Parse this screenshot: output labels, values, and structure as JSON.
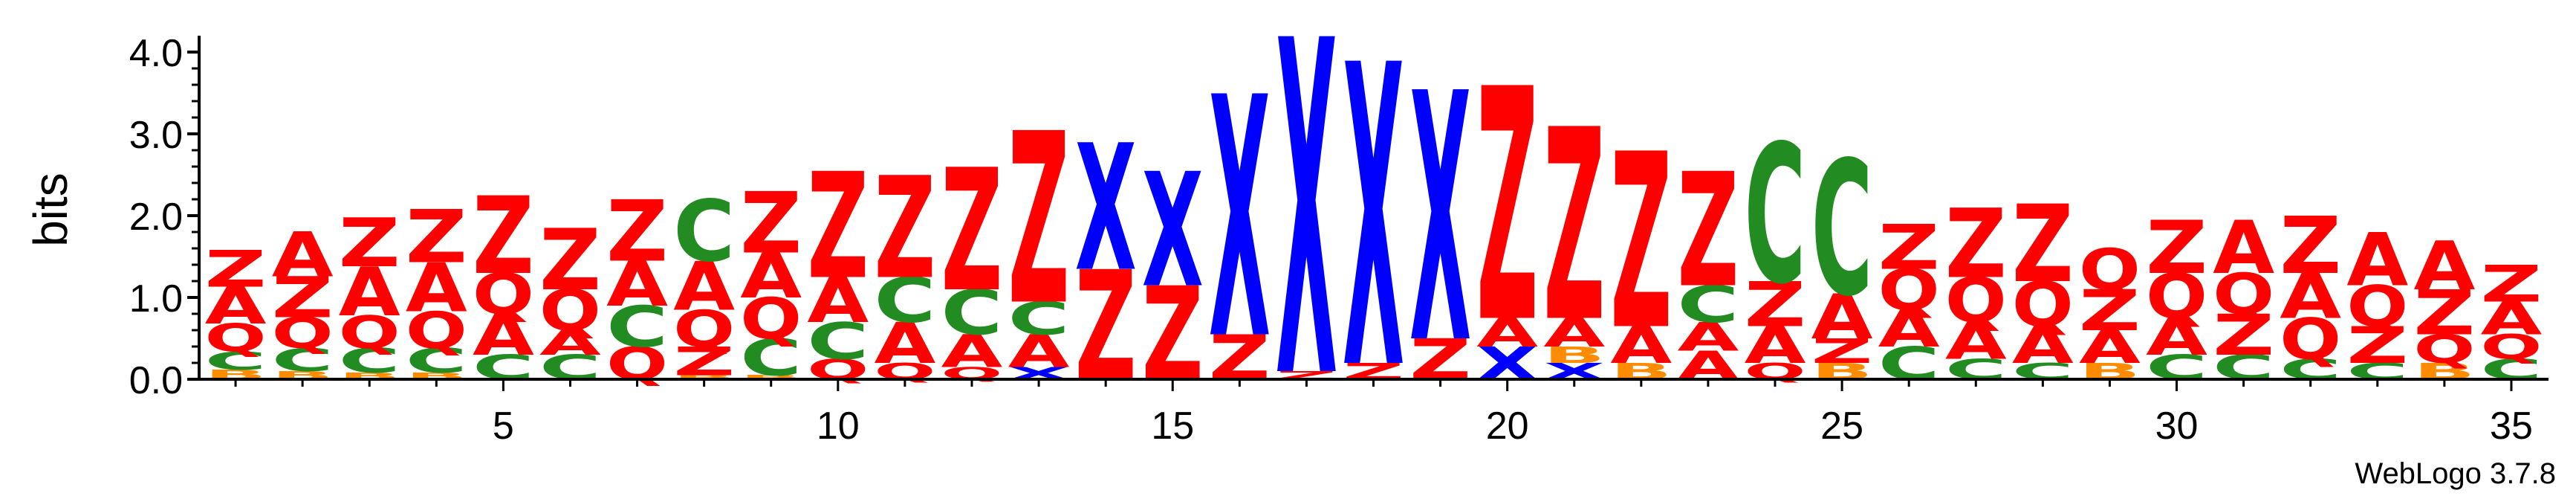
{
  "chart_data": {
    "type": "sequence_logo",
    "ylabel": "bits",
    "ylim": [
      0,
      4.2
    ],
    "yticks": [
      "0.0",
      "1.0",
      "2.0",
      "3.0",
      "4.0"
    ],
    "xticks": [
      5,
      10,
      15,
      20,
      25,
      30,
      35
    ],
    "positions": [
      1,
      35
    ],
    "footer": "WebLogo 3.7.8",
    "letter_colors": {
      "A": "#ff0000",
      "Z": "#ff0000",
      "Q": "#ff0000",
      "X": "#0000ff",
      "C": "#228b22",
      "B": "#ff8c00",
      "P": "#ff8c00"
    },
    "columns": [
      {
        "position": 1,
        "stack": [
          [
            "B",
            0.12
          ],
          [
            "C",
            0.22
          ],
          [
            "Q",
            0.34
          ],
          [
            "A",
            0.45
          ],
          [
            "Z",
            0.45
          ]
        ]
      },
      {
        "position": 2,
        "stack": [
          [
            "B",
            0.1
          ],
          [
            "C",
            0.28
          ],
          [
            "Q",
            0.38
          ],
          [
            "Z",
            0.5
          ],
          [
            "A",
            0.55
          ]
        ]
      },
      {
        "position": 3,
        "stack": [
          [
            "B",
            0.08
          ],
          [
            "C",
            0.3
          ],
          [
            "Q",
            0.4
          ],
          [
            "A",
            0.6
          ],
          [
            "Z",
            0.6
          ]
        ]
      },
      {
        "position": 4,
        "stack": [
          [
            "B",
            0.08
          ],
          [
            "C",
            0.3
          ],
          [
            "Q",
            0.45
          ],
          [
            "A",
            0.6
          ],
          [
            "Z",
            0.65
          ]
        ]
      },
      {
        "position": 5,
        "stack": [
          [
            "C",
            0.3
          ],
          [
            "A",
            0.5
          ],
          [
            "Q",
            0.5
          ],
          [
            "Z",
            0.95
          ]
        ]
      },
      {
        "position": 6,
        "stack": [
          [
            "C",
            0.3
          ],
          [
            "A",
            0.3
          ],
          [
            "Q",
            0.5
          ],
          [
            "Z",
            0.75
          ]
        ]
      },
      {
        "position": 7,
        "stack": [
          [
            "Q",
            0.4
          ],
          [
            "C",
            0.5
          ],
          [
            "A",
            0.55
          ],
          [
            "Z",
            0.75
          ]
        ]
      },
      {
        "position": 8,
        "stack": [
          [
            "B",
            0.05
          ],
          [
            "Z",
            0.35
          ],
          [
            "Q",
            0.45
          ],
          [
            "A",
            0.6
          ],
          [
            "C",
            0.75
          ]
        ]
      },
      {
        "position": 9,
        "stack": [
          [
            "B",
            0.05
          ],
          [
            "C",
            0.45
          ],
          [
            "Q",
            0.5
          ],
          [
            "A",
            0.55
          ],
          [
            "Z",
            0.75
          ]
        ]
      },
      {
        "position": 10,
        "stack": [
          [
            "Q",
            0.25
          ],
          [
            "C",
            0.45
          ],
          [
            "A",
            0.55
          ],
          [
            "Z",
            1.3
          ]
        ]
      },
      {
        "position": 11,
        "stack": [
          [
            "Q",
            0.2
          ],
          [
            "A",
            0.5
          ],
          [
            "C",
            0.55
          ],
          [
            "Z",
            1.25
          ]
        ]
      },
      {
        "position": 12,
        "stack": [
          [
            "Q",
            0.15
          ],
          [
            "A",
            0.4
          ],
          [
            "C",
            0.55
          ],
          [
            "Z",
            1.5
          ]
        ]
      },
      {
        "position": 13,
        "stack": [
          [
            "X",
            0.15
          ],
          [
            "A",
            0.4
          ],
          [
            "C",
            0.4
          ],
          [
            "Z",
            2.1
          ]
        ]
      },
      {
        "position": 14,
        "stack": [
          [
            "Z",
            1.35
          ],
          [
            "X",
            1.55
          ]
        ]
      },
      {
        "position": 15,
        "stack": [
          [
            "Z",
            1.15
          ],
          [
            "X",
            1.4
          ]
        ]
      },
      {
        "position": 16,
        "stack": [
          [
            "Z",
            0.55
          ],
          [
            "X",
            2.95
          ]
        ]
      },
      {
        "position": 17,
        "stack": [
          [
            "Z",
            0.1
          ],
          [
            "X",
            4.1
          ]
        ]
      },
      {
        "position": 18,
        "stack": [
          [
            "Z",
            0.2
          ],
          [
            "X",
            3.7
          ]
        ]
      },
      {
        "position": 19,
        "stack": [
          [
            "Z",
            0.5
          ],
          [
            "X",
            3.05
          ]
        ]
      },
      {
        "position": 20,
        "stack": [
          [
            "X",
            0.4
          ],
          [
            "A",
            0.35
          ],
          [
            "Z",
            2.85
          ]
        ]
      },
      {
        "position": 21,
        "stack": [
          [
            "X",
            0.2
          ],
          [
            "B",
            0.2
          ],
          [
            "A",
            0.35
          ],
          [
            "Z",
            2.35
          ]
        ]
      },
      {
        "position": 22,
        "stack": [
          [
            "B",
            0.2
          ],
          [
            "A",
            0.45
          ],
          [
            "Z",
            2.15
          ]
        ]
      },
      {
        "position": 23,
        "stack": [
          [
            "A",
            0.35
          ],
          [
            "A",
            0.35
          ],
          [
            "C",
            0.45
          ],
          [
            "Z",
            1.4
          ]
        ]
      },
      {
        "position": 24,
        "stack": [
          [
            "Q",
            0.2
          ],
          [
            "A",
            0.45
          ],
          [
            "Z",
            0.55
          ],
          [
            "C",
            1.7
          ]
        ]
      },
      {
        "position": 25,
        "stack": [
          [
            "B",
            0.2
          ],
          [
            "Z",
            0.3
          ],
          [
            "A",
            0.55
          ],
          [
            "C",
            1.65
          ]
        ]
      },
      {
        "position": 26,
        "stack": [
          [
            "C",
            0.4
          ],
          [
            "A",
            0.45
          ],
          [
            "Q",
            0.5
          ],
          [
            "Z",
            0.55
          ]
        ]
      },
      {
        "position": 27,
        "stack": [
          [
            "C",
            0.25
          ],
          [
            "A",
            0.45
          ],
          [
            "Q",
            0.55
          ],
          [
            "Z",
            0.85
          ]
        ]
      },
      {
        "position": 28,
        "stack": [
          [
            "C",
            0.2
          ],
          [
            "A",
            0.45
          ],
          [
            "Q",
            0.55
          ],
          [
            "Z",
            0.95
          ]
        ]
      },
      {
        "position": 29,
        "stack": [
          [
            "B",
            0.2
          ],
          [
            "A",
            0.4
          ],
          [
            "Z",
            0.5
          ],
          [
            "Q",
            0.5
          ]
        ]
      },
      {
        "position": 30,
        "stack": [
          [
            "C",
            0.3
          ],
          [
            "A",
            0.45
          ],
          [
            "Q",
            0.55
          ],
          [
            "Z",
            0.65
          ]
        ]
      },
      {
        "position": 31,
        "stack": [
          [
            "C",
            0.3
          ],
          [
            "Z",
            0.5
          ],
          [
            "Q",
            0.5
          ],
          [
            "A",
            0.65
          ]
        ]
      },
      {
        "position": 32,
        "stack": [
          [
            "C",
            0.25
          ],
          [
            "Q",
            0.5
          ],
          [
            "A",
            0.55
          ],
          [
            "Z",
            0.7
          ]
        ]
      },
      {
        "position": 33,
        "stack": [
          [
            "C",
            0.2
          ],
          [
            "Z",
            0.45
          ],
          [
            "Q",
            0.5
          ],
          [
            "A",
            0.65
          ]
        ]
      },
      {
        "position": 34,
        "stack": [
          [
            "B",
            0.2
          ],
          [
            "Q",
            0.35
          ],
          [
            "Z",
            0.55
          ],
          [
            "A",
            0.6
          ]
        ]
      },
      {
        "position": 35,
        "stack": [
          [
            "C",
            0.25
          ],
          [
            "Q",
            0.3
          ],
          [
            "A",
            0.4
          ],
          [
            "Z",
            0.45
          ]
        ]
      }
    ]
  }
}
